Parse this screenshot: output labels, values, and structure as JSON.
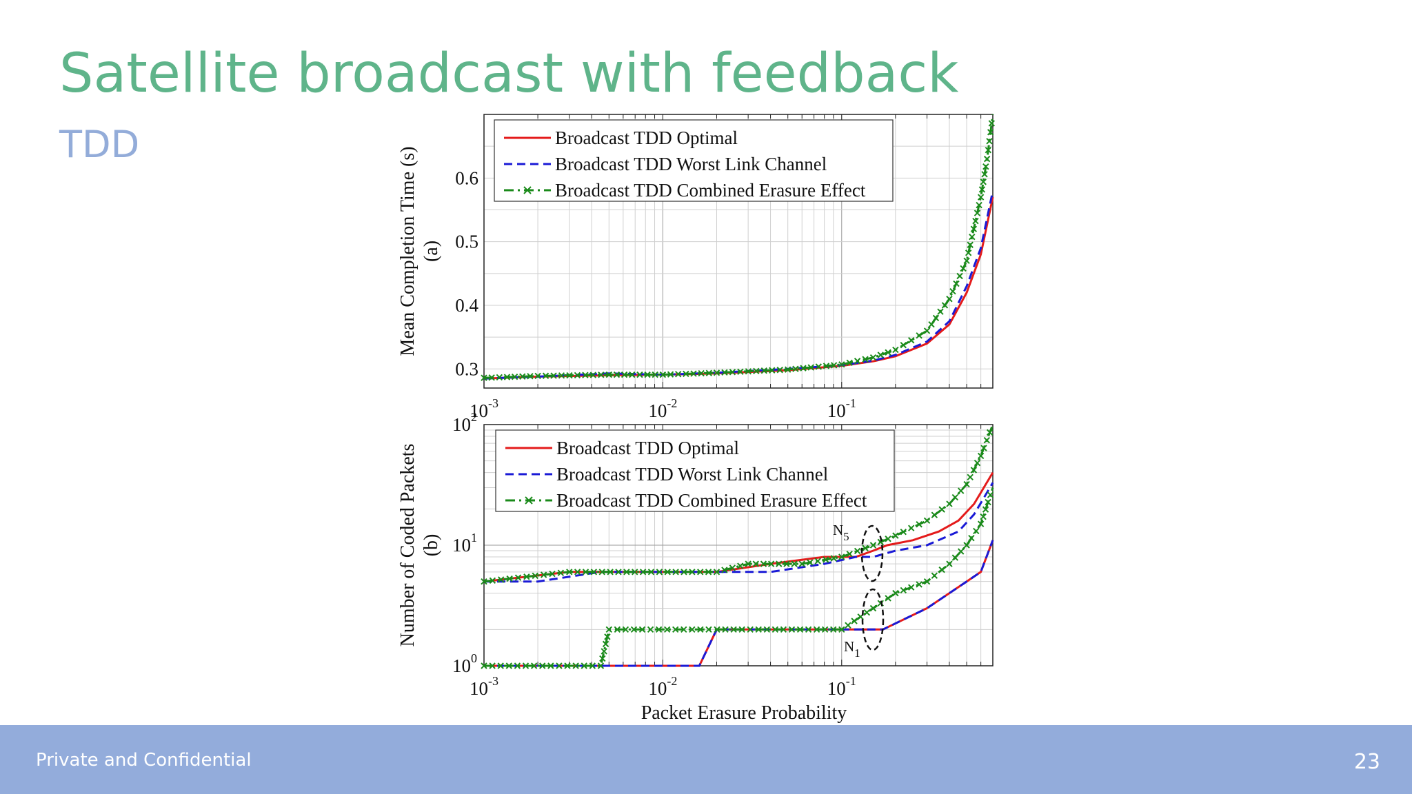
{
  "slide": {
    "title": "Satellite broadcast with feedback",
    "subtitle": "TDD",
    "footer": "Private and Confidential",
    "page_number": "23"
  },
  "colors": {
    "optimal": "#e41b1b",
    "worst": "#1a1ad6",
    "combined": "#1a8a1a",
    "title": "#5fb48a",
    "footer": "#93acdb"
  },
  "chart_data": [
    {
      "type": "line",
      "panel": "a",
      "ylabel": "Mean Completion Time (s)",
      "panel_label": "(a)",
      "xscale": "log",
      "xlim": [
        0.001,
        0.7
      ],
      "ylim": [
        0.27,
        0.7
      ],
      "yticks": [
        0.3,
        0.4,
        0.5,
        0.6
      ],
      "ytick_labels": [
        "0.3",
        "0.4",
        "0.5",
        "0.6"
      ],
      "xticks": [
        {
          "base": "10",
          "exp": "-3"
        },
        {
          "base": "10",
          "exp": "-2"
        },
        {
          "base": "10",
          "exp": "-1"
        }
      ],
      "grid": true,
      "legend_position": "top-left",
      "series": [
        {
          "name": "Broadcast TDD Optimal",
          "style": "solid",
          "color_key": "optimal",
          "x": [
            0.001,
            0.002,
            0.005,
            0.01,
            0.02,
            0.05,
            0.1,
            0.15,
            0.2,
            0.3,
            0.4,
            0.5,
            0.6,
            0.7
          ],
          "y": [
            0.285,
            0.288,
            0.29,
            0.291,
            0.293,
            0.298,
            0.305,
            0.312,
            0.32,
            0.34,
            0.37,
            0.42,
            0.48,
            0.57
          ]
        },
        {
          "name": "Broadcast TDD Worst Link Channel",
          "style": "dashed",
          "color_key": "worst",
          "x": [
            0.001,
            0.002,
            0.005,
            0.01,
            0.02,
            0.05,
            0.1,
            0.15,
            0.2,
            0.3,
            0.4,
            0.5,
            0.6,
            0.7
          ],
          "y": [
            0.285,
            0.288,
            0.293,
            0.291,
            0.294,
            0.3,
            0.306,
            0.313,
            0.322,
            0.343,
            0.375,
            0.43,
            0.49,
            0.58
          ]
        },
        {
          "name": "Broadcast TDD Combined Erasure Effect",
          "style": "dashdot-x",
          "color_key": "combined",
          "x": [
            0.001,
            0.002,
            0.005,
            0.01,
            0.02,
            0.05,
            0.1,
            0.15,
            0.2,
            0.3,
            0.4,
            0.5,
            0.6,
            0.65,
            0.7
          ],
          "y": [
            0.286,
            0.289,
            0.291,
            0.291,
            0.294,
            0.299,
            0.307,
            0.318,
            0.33,
            0.36,
            0.41,
            0.47,
            0.57,
            0.63,
            0.7
          ]
        }
      ]
    },
    {
      "type": "line",
      "panel": "b",
      "ylabel": "Number of Coded Packets",
      "panel_label": "(b)",
      "xlabel": "Packet Erasure Probability",
      "xscale": "log",
      "yscale": "log",
      "xlim": [
        0.001,
        0.7
      ],
      "ylim": [
        1,
        100
      ],
      "yticks": [
        {
          "base": "10",
          "exp": "0"
        },
        {
          "base": "10",
          "exp": "1"
        },
        {
          "base": "10",
          "exp": "2"
        }
      ],
      "xticks": [
        {
          "base": "10",
          "exp": "-3"
        },
        {
          "base": "10",
          "exp": "-2"
        },
        {
          "base": "10",
          "exp": "-1"
        }
      ],
      "grid": true,
      "legend_position": "top-left",
      "annotations": [
        {
          "base": "N",
          "sub": "5"
        },
        {
          "base": "N",
          "sub": "1"
        }
      ],
      "series": [
        {
          "name": "Broadcast TDD Optimal",
          "style": "solid",
          "color_key": "optimal",
          "group": "N5",
          "x": [
            0.001,
            0.003,
            0.02,
            0.04,
            0.08,
            0.12,
            0.15,
            0.18,
            0.25,
            0.35,
            0.45,
            0.55,
            0.7
          ],
          "y": [
            5,
            6,
            6,
            7,
            8,
            8,
            9,
            10,
            11,
            13,
            16,
            22,
            40
          ]
        },
        {
          "name": "Broadcast TDD Worst Link Channel",
          "style": "dashed",
          "color_key": "worst",
          "group": "N5",
          "x": [
            0.001,
            0.002,
            0.0045,
            0.02,
            0.04,
            0.08,
            0.12,
            0.15,
            0.2,
            0.3,
            0.45,
            0.55,
            0.7
          ],
          "y": [
            5,
            5,
            6,
            6,
            6,
            7,
            8,
            8,
            9,
            10,
            13,
            18,
            33
          ]
        },
        {
          "name": "Broadcast TDD Combined Erasure Effect",
          "style": "dashdot-x",
          "color_key": "combined",
          "group": "N5",
          "x": [
            0.001,
            0.003,
            0.02,
            0.03,
            0.06,
            0.1,
            0.15,
            0.2,
            0.3,
            0.4,
            0.5,
            0.6,
            0.7
          ],
          "y": [
            5,
            6,
            6,
            7,
            7,
            8,
            10,
            12,
            16,
            22,
            32,
            55,
            120
          ]
        },
        {
          "name": "Broadcast TDD Optimal",
          "style": "solid",
          "color_key": "optimal",
          "group": "N1",
          "x": [
            0.001,
            0.016,
            0.02,
            0.1,
            0.17,
            0.3,
            0.4,
            0.5,
            0.6,
            0.7
          ],
          "y": [
            1,
            1,
            2,
            2,
            2,
            3,
            4,
            5,
            6,
            11
          ]
        },
        {
          "name": "Broadcast TDD Worst Link Channel",
          "style": "dashed",
          "color_key": "worst",
          "group": "N1",
          "x": [
            0.001,
            0.016,
            0.02,
            0.1,
            0.17,
            0.3,
            0.4,
            0.5,
            0.6,
            0.7
          ],
          "y": [
            1,
            1,
            2,
            2,
            2,
            3,
            4,
            5,
            6,
            11
          ]
        },
        {
          "name": "Broadcast TDD Combined Erasure Effect",
          "style": "dashdot-x",
          "color_key": "combined",
          "group": "N1",
          "x": [
            0.001,
            0.0045,
            0.005,
            0.1,
            0.15,
            0.2,
            0.3,
            0.4,
            0.5,
            0.6,
            0.7
          ],
          "y": [
            1,
            1,
            2,
            2,
            3,
            4,
            5,
            7,
            10,
            15,
            30
          ]
        }
      ]
    }
  ]
}
